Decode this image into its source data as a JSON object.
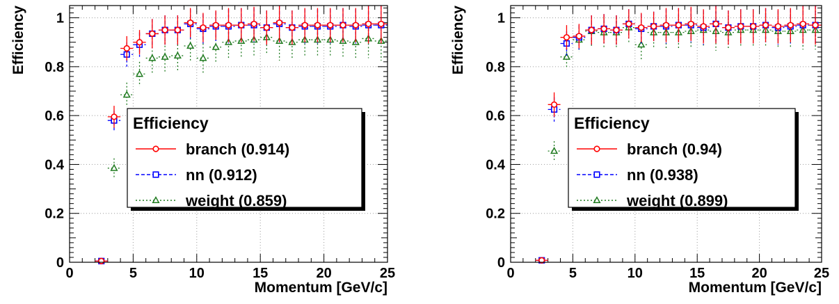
{
  "chart_data": [
    {
      "type": "scatter",
      "xlabel": "Momentum [GeV/c]",
      "ylabel": "Efficiency",
      "xlim": [
        0,
        25
      ],
      "ylim": [
        0,
        1.05
      ],
      "xticks": [
        0,
        5,
        10,
        15,
        20,
        25
      ],
      "yticks": [
        0,
        0.2,
        0.4,
        0.6,
        0.8,
        1
      ],
      "grid": true,
      "legend": {
        "title": "Efficiency",
        "position": "center-right"
      },
      "x": [
        2.5,
        3.5,
        4.5,
        5.5,
        6.5,
        7.5,
        8.5,
        9.5,
        10.5,
        11.5,
        12.5,
        13.5,
        14.5,
        15.5,
        16.5,
        17.5,
        18.5,
        19.5,
        20.5,
        21.5,
        22.5,
        23.5,
        24.5
      ],
      "series": [
        {
          "name": "branch (0.914)",
          "color": "#ff0000",
          "marker": "circle",
          "values": [
            0.005,
            0.595,
            0.875,
            0.9,
            0.935,
            0.95,
            0.95,
            0.98,
            0.96,
            0.97,
            0.97,
            0.97,
            0.975,
            0.96,
            0.98,
            0.96,
            0.97,
            0.97,
            0.97,
            0.97,
            0.97,
            0.975,
            0.975
          ],
          "errors": [
            0.01,
            0.045,
            0.05,
            0.05,
            0.06,
            0.06,
            0.06,
            0.06,
            0.06,
            0.06,
            0.07,
            0.07,
            0.07,
            0.07,
            0.08,
            0.07,
            0.07,
            0.07,
            0.07,
            0.07,
            0.07,
            0.08,
            0.08
          ]
        },
        {
          "name": "nn (0.912)",
          "color": "#0000ff",
          "marker": "square",
          "values": [
            0.005,
            0.58,
            0.85,
            0.89,
            0.935,
            0.95,
            0.95,
            0.975,
            0.955,
            0.965,
            0.965,
            0.97,
            0.97,
            0.96,
            0.975,
            0.96,
            0.965,
            0.965,
            0.965,
            0.97,
            0.965,
            0.97,
            0.97
          ],
          "errors": [
            0.01,
            0.04,
            0.05,
            0.05,
            0.06,
            0.06,
            0.06,
            0.06,
            0.06,
            0.06,
            0.07,
            0.07,
            0.07,
            0.07,
            0.08,
            0.07,
            0.07,
            0.07,
            0.07,
            0.07,
            0.07,
            0.08,
            0.08
          ]
        },
        {
          "name": "weight (0.859)",
          "color": "#1f7a1f",
          "marker": "triangle",
          "values": [
            null,
            0.385,
            0.685,
            0.77,
            0.835,
            0.84,
            0.845,
            0.885,
            0.835,
            0.88,
            0.9,
            0.905,
            0.91,
            0.92,
            0.905,
            0.9,
            0.91,
            0.91,
            0.91,
            0.905,
            0.9,
            0.915,
            0.905
          ],
          "errors": [
            null,
            0.04,
            0.05,
            0.05,
            0.06,
            0.06,
            0.06,
            0.06,
            0.06,
            0.06,
            0.07,
            0.07,
            0.07,
            0.07,
            0.08,
            0.07,
            0.07,
            0.07,
            0.07,
            0.07,
            0.07,
            0.08,
            0.08
          ]
        }
      ]
    },
    {
      "type": "scatter",
      "xlabel": "Momentum [GeV/c]",
      "ylabel": "Efficiency",
      "xlim": [
        0,
        25
      ],
      "ylim": [
        0,
        1.05
      ],
      "xticks": [
        0,
        5,
        10,
        15,
        20,
        25
      ],
      "yticks": [
        0,
        0.2,
        0.4,
        0.6,
        0.8,
        1
      ],
      "grid": true,
      "legend": {
        "title": "Efficiency",
        "position": "center-right"
      },
      "x": [
        2.5,
        3.5,
        4.5,
        5.5,
        6.5,
        7.5,
        8.5,
        9.5,
        10.5,
        11.5,
        12.5,
        13.5,
        14.5,
        15.5,
        16.5,
        17.5,
        18.5,
        19.5,
        20.5,
        21.5,
        22.5,
        23.5,
        24.5
      ],
      "series": [
        {
          "name": "branch (0.94)",
          "color": "#ff0000",
          "marker": "circle",
          "values": [
            0.008,
            0.645,
            0.92,
            0.925,
            0.95,
            0.955,
            0.95,
            0.975,
            0.96,
            0.965,
            0.97,
            0.97,
            0.975,
            0.965,
            0.975,
            0.96,
            0.965,
            0.965,
            0.97,
            0.965,
            0.97,
            0.975,
            0.97
          ],
          "errors": [
            0.01,
            0.05,
            0.05,
            0.05,
            0.06,
            0.06,
            0.06,
            0.06,
            0.06,
            0.06,
            0.07,
            0.07,
            0.07,
            0.07,
            0.08,
            0.07,
            0.07,
            0.07,
            0.07,
            0.07,
            0.07,
            0.08,
            0.08
          ]
        },
        {
          "name": "nn (0.938)",
          "color": "#0000ff",
          "marker": "square",
          "values": [
            0.008,
            0.625,
            0.895,
            0.92,
            0.95,
            0.955,
            0.95,
            0.975,
            0.955,
            0.965,
            0.965,
            0.97,
            0.97,
            0.96,
            0.975,
            0.96,
            0.965,
            0.965,
            0.97,
            0.96,
            0.965,
            0.97,
            0.97
          ],
          "errors": [
            0.01,
            0.05,
            0.05,
            0.05,
            0.06,
            0.06,
            0.06,
            0.06,
            0.06,
            0.06,
            0.07,
            0.07,
            0.07,
            0.07,
            0.08,
            0.07,
            0.07,
            0.07,
            0.07,
            0.07,
            0.07,
            0.08,
            0.08
          ]
        },
        {
          "name": "weight (0.899)",
          "color": "#1f7a1f",
          "marker": "triangle",
          "values": [
            null,
            0.455,
            0.84,
            0.91,
            0.945,
            0.94,
            0.94,
            0.96,
            0.89,
            0.94,
            0.94,
            0.94,
            0.945,
            0.95,
            0.945,
            0.94,
            0.95,
            0.95,
            0.95,
            0.945,
            0.945,
            0.95,
            0.95
          ],
          "errors": [
            null,
            0.04,
            0.05,
            0.05,
            0.06,
            0.06,
            0.06,
            0.06,
            0.06,
            0.06,
            0.07,
            0.07,
            0.07,
            0.07,
            0.08,
            0.07,
            0.07,
            0.07,
            0.07,
            0.07,
            0.07,
            0.08,
            0.08
          ]
        }
      ]
    }
  ]
}
